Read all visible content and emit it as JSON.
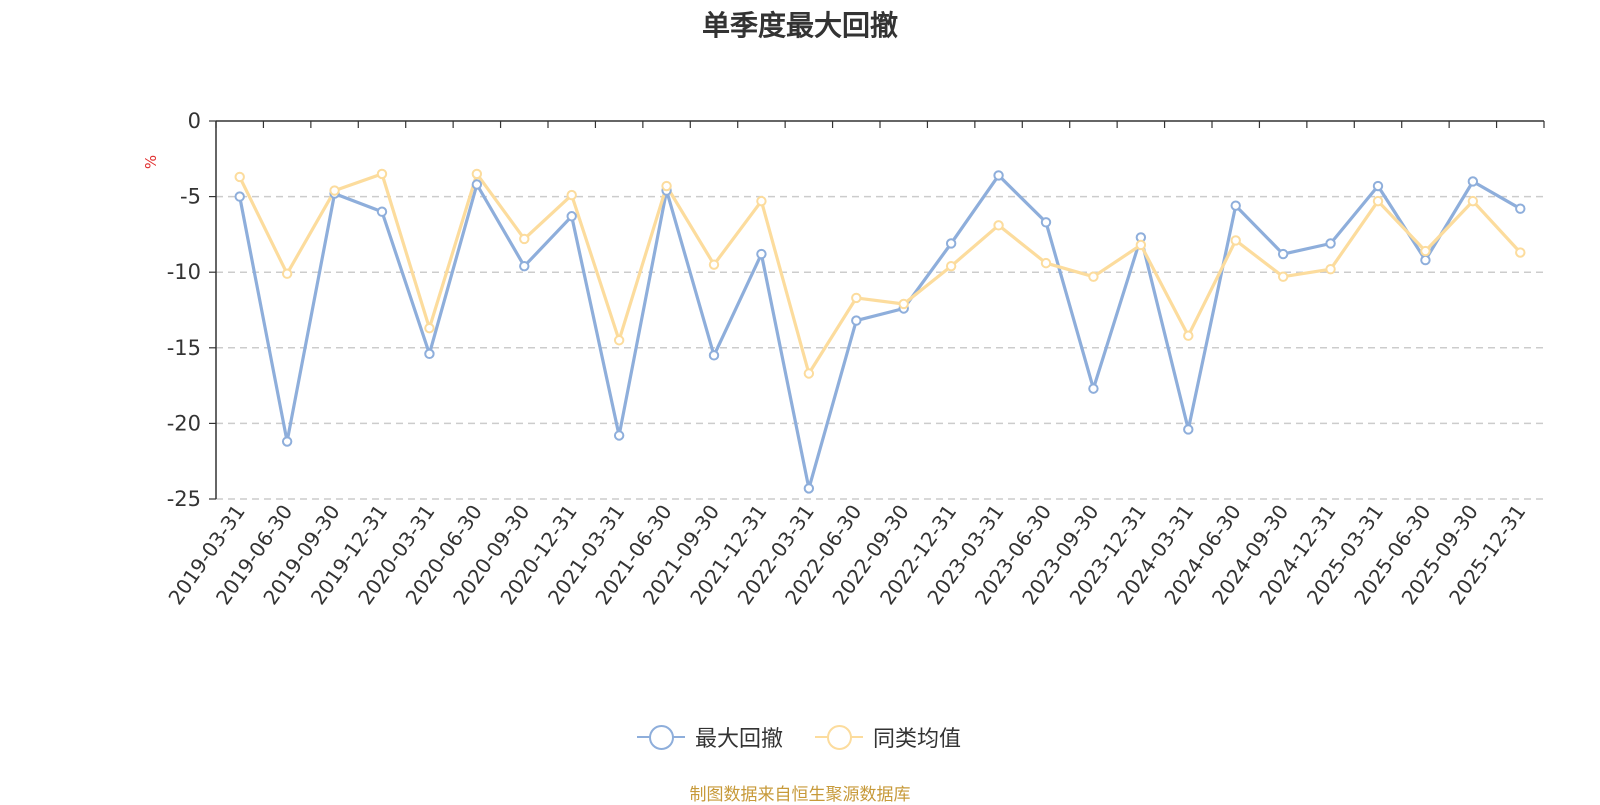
{
  "chart_data": {
    "type": "line",
    "title": "单季度最大回撤",
    "ylabel": "%",
    "ylim": [
      -25,
      0
    ],
    "yticks": [
      0,
      -5,
      -10,
      -15,
      -20,
      -25
    ],
    "grid": "horizontal-dashed",
    "legend_position": "bottom-center",
    "categories": [
      "2019-03-31",
      "2019-06-30",
      "2019-09-30",
      "2019-12-31",
      "2020-03-31",
      "2020-06-30",
      "2020-09-30",
      "2020-12-31",
      "2021-03-31",
      "2021-06-30",
      "2021-09-30",
      "2021-12-31",
      "2022-03-31",
      "2022-06-30",
      "2022-09-30",
      "2022-12-31",
      "2023-03-31",
      "2023-06-30",
      "2023-09-30",
      "2023-12-31",
      "2024-03-31",
      "2024-06-30",
      "2024-09-30",
      "2024-12-31",
      "2025-03-31",
      "2025-06-30",
      "2025-09-30",
      "2025-12-31"
    ],
    "series": [
      {
        "name": "最大回撤",
        "color": "#8eaedb",
        "values": [
          -5.0,
          -21.2,
          -4.8,
          -6.0,
          -15.4,
          -4.2,
          -9.6,
          -6.3,
          -20.8,
          -4.6,
          -15.5,
          -8.8,
          -24.3,
          -13.2,
          -12.4,
          -8.1,
          -3.6,
          -6.7,
          -17.7,
          -7.7,
          -20.4,
          -5.6,
          -8.8,
          -8.1,
          -4.3,
          -9.2,
          -4.0,
          -5.8
        ]
      },
      {
        "name": "同类均值",
        "color": "#fcdc9d",
        "values": [
          -3.7,
          -10.1,
          -4.6,
          -3.5,
          -13.7,
          -3.5,
          -7.8,
          -4.9,
          -14.5,
          -4.3,
          -9.5,
          -5.3,
          -16.7,
          -11.7,
          -12.1,
          -9.6,
          -6.9,
          -9.4,
          -10.3,
          -8.2,
          -14.2,
          -7.9,
          -10.3,
          -9.8,
          -5.3,
          -8.6,
          -5.3,
          -8.7
        ]
      }
    ]
  },
  "source_note": "制图数据来自恒生聚源数据库"
}
